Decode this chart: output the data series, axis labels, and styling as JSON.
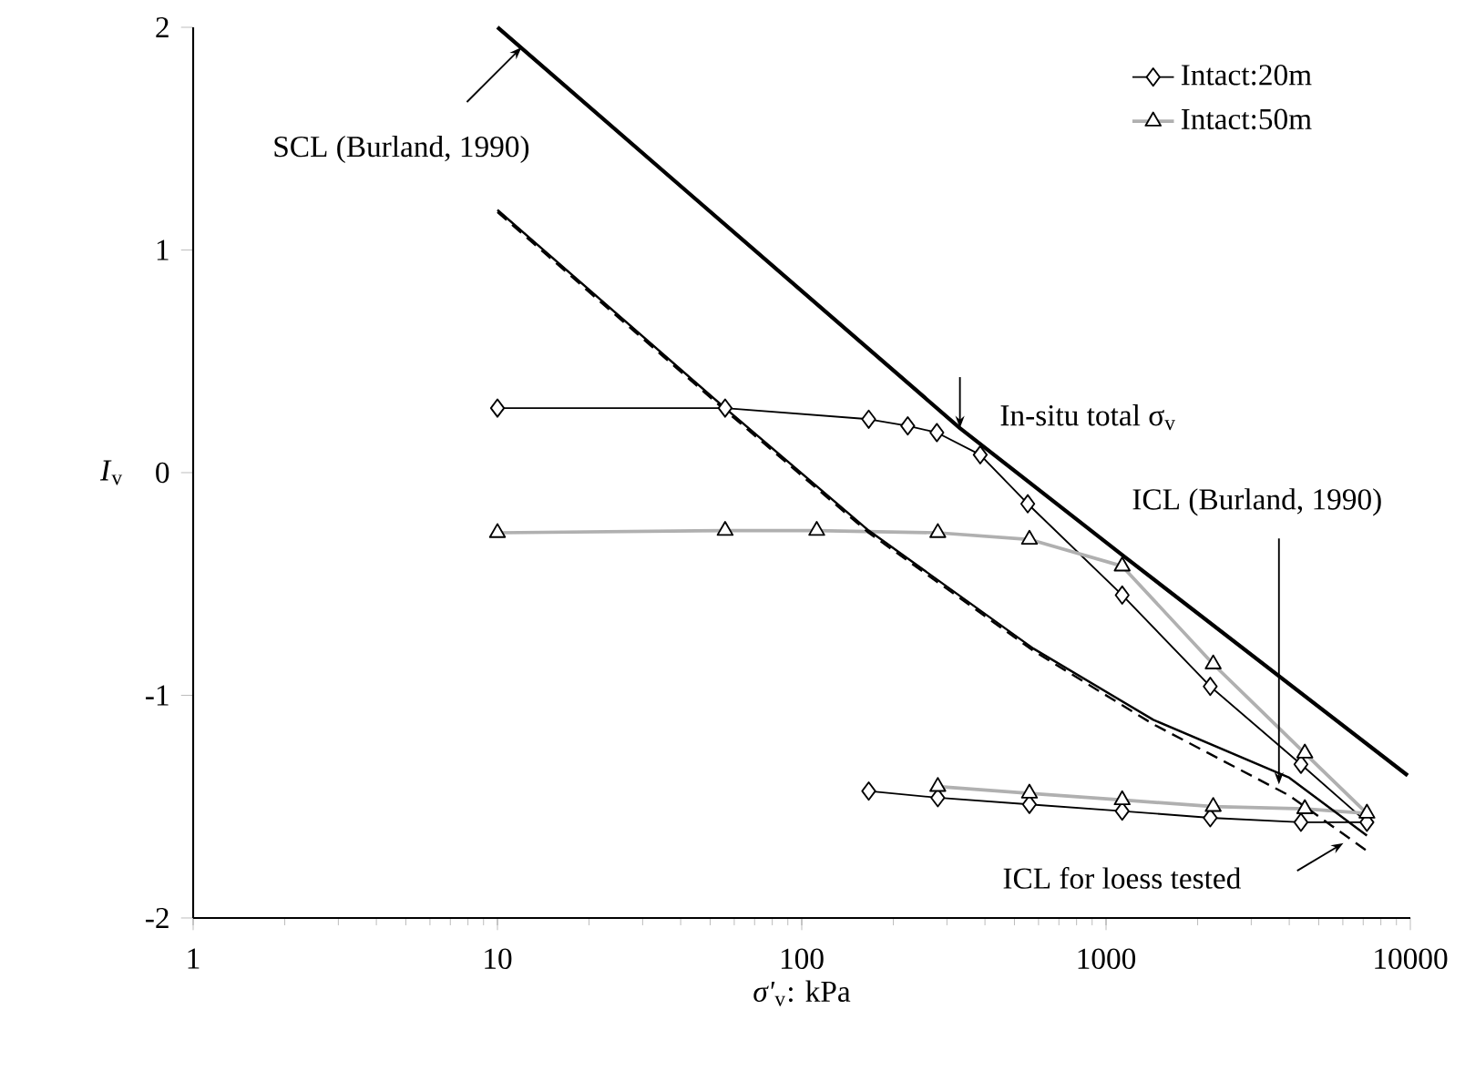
{
  "chart_data": {
    "type": "line",
    "xlabel": "*σ'*$_{v}$: kPa",
    "ylabel": "*I*$_{v}$",
    "log": "x",
    "xlim": [
      1,
      10000
    ],
    "xticks": [
      1,
      10,
      100,
      1000,
      10000
    ],
    "ylim": [
      -2,
      2
    ],
    "yticks": [
      -2,
      -1,
      0,
      1,
      2
    ],
    "legend": "top right",
    "annotations": [
      {
        "text": "SCL (Burland, 1990)",
        "x": 12,
        "y": 1.91
      },
      {
        "text": "In-situ total σ$_{v}$",
        "x": 331,
        "y": 0.2
      },
      {
        "text": "ICL (Burland, 1990)",
        "x": 3700,
        "y": -1.4
      },
      "ICL for loess tested"
    ],
    "series": [
      {
        "name": "Intact:20m",
        "color": "#000000",
        "marker": "diamond",
        "x": [
          10,
          56,
          166,
          223,
          278,
          386,
          553,
          1130,
          2200,
          4370,
          7200,
          4370,
          2200,
          1130,
          560,
          280,
          166
        ],
        "values": [
          0.29,
          0.29,
          0.24,
          0.21,
          0.18,
          0.08,
          -0.14,
          -0.55,
          -0.96,
          -1.31,
          -1.57,
          -1.57,
          -1.55,
          -1.52,
          -1.49,
          -1.46,
          -1.43
        ]
      },
      {
        "name": "Intact:50m",
        "color": "#b0b0b0",
        "marker": "triangle",
        "x": [
          10,
          56,
          112,
          280,
          560,
          1130,
          2250,
          4500,
          7200,
          4500,
          2250,
          1130,
          560,
          280
        ],
        "values": [
          -0.27,
          -0.26,
          -0.26,
          -0.27,
          -0.3,
          -0.42,
          -0.86,
          -1.26,
          -1.53,
          -1.51,
          -1.5,
          -1.47,
          -1.44,
          -1.41
        ]
      },
      {
        "color": "#000000",
        "marker": "none",
        "x": [
          10,
          331,
          1130,
          9800
        ],
        "values": [
          2.0,
          0.2,
          -0.37,
          -1.36
        ]
      },
      {
        "color": "#000000",
        "marker": "none",
        "x": [
          10,
          56,
          166,
          577,
          1430,
          4000,
          7200
        ],
        "values": [
          1.18,
          0.29,
          -0.26,
          -0.79,
          -1.11,
          -1.37,
          -1.63
        ]
      },
      {
        "color": "#000000",
        "marker": "none",
        "line_style": "dashed",
        "x": [
          10,
          56,
          166,
          577,
          1430,
          4000,
          7400
        ],
        "values": [
          1.17,
          0.28,
          -0.27,
          -0.8,
          -1.13,
          -1.45,
          -1.71
        ]
      }
    ]
  }
}
